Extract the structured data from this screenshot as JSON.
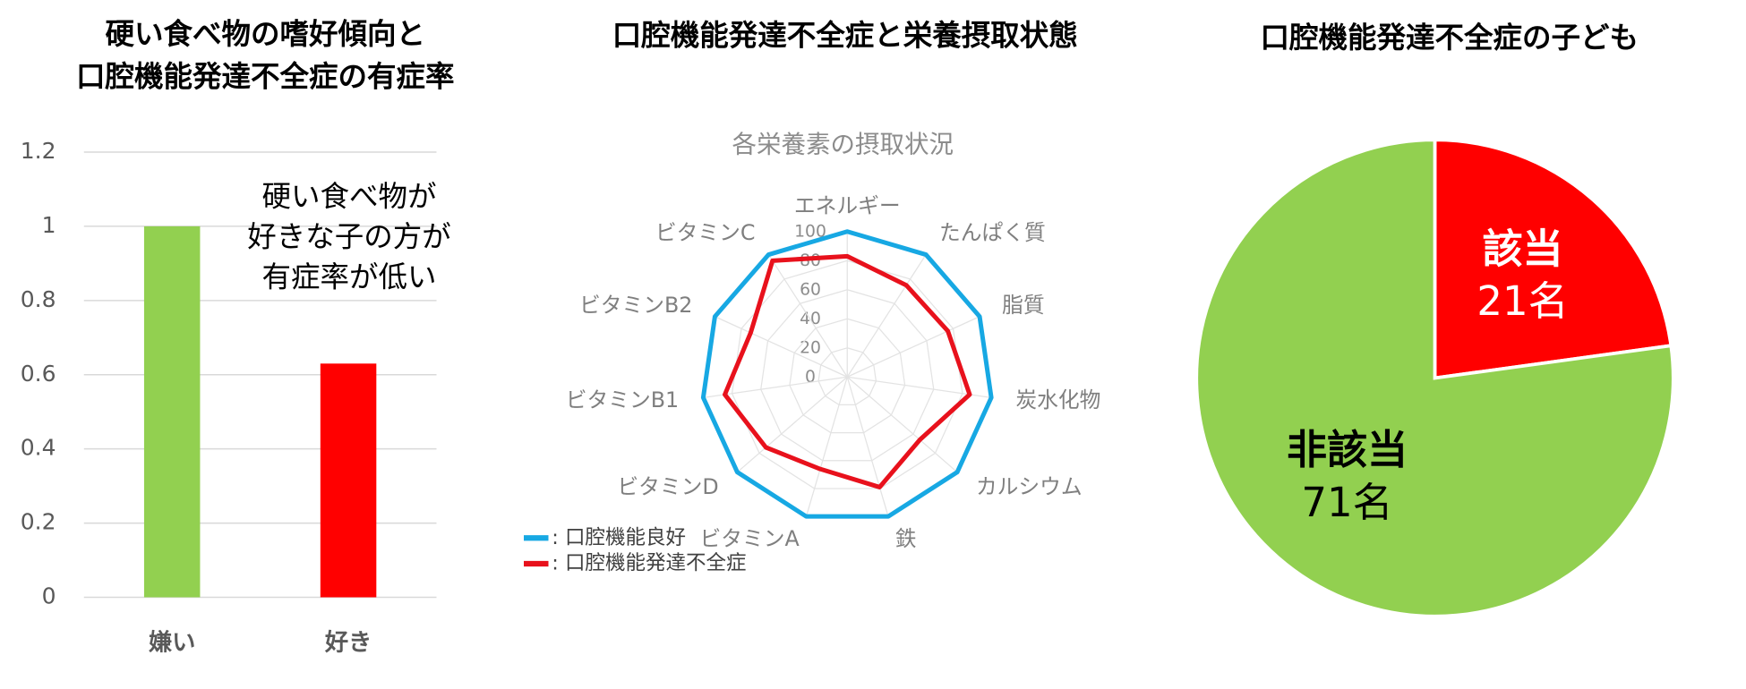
{
  "chart_data": [
    {
      "type": "bar",
      "title": [
        "硬い食べ物の嗜好傾向と",
        "口腔機能発達不全症の有症率"
      ],
      "annotation": [
        "硬い食べ物が",
        "好きな子の方が",
        "有症率が低い"
      ],
      "categories": [
        "嫌い",
        "好き"
      ],
      "values": [
        1,
        0.63
      ],
      "colors": [
        "#92d050",
        "#ff0000"
      ],
      "ylim": [
        0,
        1.2
      ],
      "yticks": [
        0,
        0.2,
        0.4,
        0.6,
        0.8,
        1,
        1.2
      ],
      "grid": true
    },
    {
      "type": "radar",
      "title": "口腔機能発達不全症と栄養摂取状態",
      "subtitle": "各栄養素の摂取状況",
      "categories": [
        "エネルギー",
        "たんぱく質",
        "脂質",
        "炭水化物",
        "カルシウム",
        "鉄",
        "ビタミンA",
        "ビタミンD",
        "ビタミンB1",
        "ビタミンB2",
        "ビタミンC"
      ],
      "rlim": [
        0,
        100
      ],
      "rticks": [
        0,
        20,
        40,
        60,
        80,
        100
      ],
      "grid": true,
      "series": [
        {
          "name": ": 口腔機能良好",
          "color": "#17a8e3",
          "values": [
            100,
            100,
            100,
            100,
            100,
            100,
            100,
            100,
            100,
            100,
            100
          ]
        },
        {
          "name": ": 口腔機能発達不全症",
          "color": "#e8111c",
          "values": [
            83,
            75,
            76,
            85,
            66,
            79,
            66,
            74,
            85,
            73,
            95
          ]
        }
      ]
    },
    {
      "type": "pie",
      "title": "口腔機能発達不全症の子ども",
      "categories": [
        "該当",
        "非該当"
      ],
      "values": [
        21,
        71
      ],
      "value_labels": [
        "21名",
        "71名"
      ],
      "colors": [
        "#ff0000",
        "#92d050"
      ],
      "label_colors": [
        "#ffffff",
        "#000000"
      ]
    }
  ]
}
